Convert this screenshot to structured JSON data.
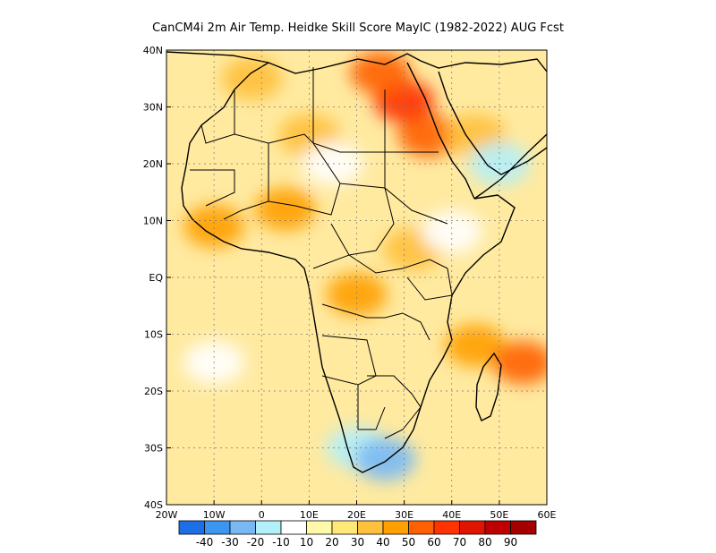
{
  "chart_data": {
    "type": "heatmap",
    "title": "CanCM4i 2m Air Temp. Heidke Skill Score MayIC (1982-2022) AUG Fcst",
    "xlabel": "",
    "ylabel": "",
    "xlim": [
      -20,
      60
    ],
    "ylim": [
      -40,
      40
    ],
    "grid": true,
    "x_ticks": [
      {
        "value": -20,
        "label": "20W"
      },
      {
        "value": -10,
        "label": "10W"
      },
      {
        "value": 0,
        "label": "0"
      },
      {
        "value": 10,
        "label": "10E"
      },
      {
        "value": 20,
        "label": "20E"
      },
      {
        "value": 30,
        "label": "30E"
      },
      {
        "value": 40,
        "label": "40E"
      },
      {
        "value": 50,
        "label": "50E"
      },
      {
        "value": 60,
        "label": "60E"
      }
    ],
    "y_ticks": [
      {
        "value": 40,
        "label": "40N"
      },
      {
        "value": 30,
        "label": "30N"
      },
      {
        "value": 20,
        "label": "20N"
      },
      {
        "value": 10,
        "label": "10N"
      },
      {
        "value": 0,
        "label": "EQ"
      },
      {
        "value": -10,
        "label": "10S"
      },
      {
        "value": -20,
        "label": "20S"
      },
      {
        "value": -30,
        "label": "30S"
      },
      {
        "value": -40,
        "label": "40S"
      }
    ],
    "colorbar": {
      "colors": [
        "#1e6ee8",
        "#3c96f0",
        "#78b9f5",
        "#b4f0fa",
        "#ffffff",
        "#fffaaa",
        "#ffe878",
        "#ffc03c",
        "#ffa000",
        "#ff6000",
        "#ff3200",
        "#e11400",
        "#c00000",
        "#a50000"
      ],
      "tick_labels": [
        "-40",
        "-30",
        "-20",
        "-10",
        "10",
        "20",
        "30",
        "40",
        "50",
        "60",
        "70",
        "80",
        "90"
      ]
    },
    "skill_regions": [
      {
        "lon": 35,
        "lat": 25,
        "value": 55
      },
      {
        "lon": 30,
        "lat": 31,
        "value": 65
      },
      {
        "lon": 25,
        "lat": 36,
        "value": 50
      },
      {
        "lon": -2,
        "lat": 35,
        "value": 35
      },
      {
        "lon": 10,
        "lat": 25,
        "value": 30
      },
      {
        "lon": 5,
        "lat": 12,
        "value": 40
      },
      {
        "lon": -10,
        "lat": 9,
        "value": 45
      },
      {
        "lon": 20,
        "lat": -3,
        "value": 40
      },
      {
        "lon": 45,
        "lat": -12,
        "value": 45
      },
      {
        "lon": 55,
        "lat": -15,
        "value": 55
      },
      {
        "lon": 32,
        "lat": 5,
        "value": 35
      },
      {
        "lon": 45,
        "lat": 25,
        "value": 35
      },
      {
        "lon": -10,
        "lat": -15,
        "value": -5
      },
      {
        "lon": 20,
        "lat": -30,
        "value": -15
      },
      {
        "lon": 26,
        "lat": -32,
        "value": -25
      },
      {
        "lon": 15,
        "lat": 20,
        "value": 5
      },
      {
        "lon": 50,
        "lat": 20,
        "value": -15
      },
      {
        "lon": 40,
        "lat": 8,
        "value": -10
      }
    ]
  }
}
